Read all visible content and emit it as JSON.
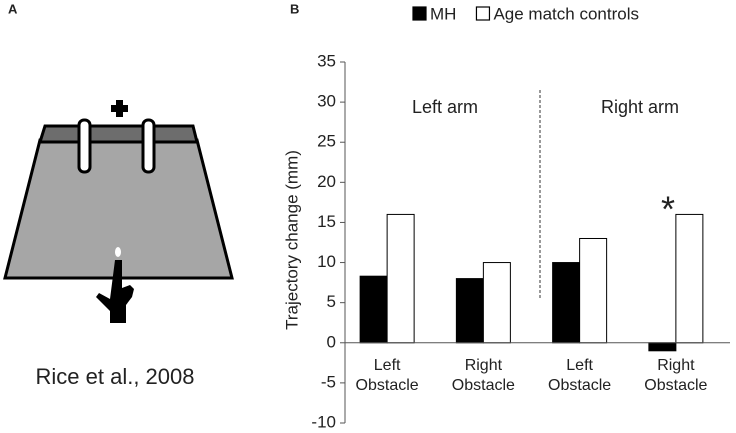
{
  "panel_a": {
    "label": "A",
    "caption": "Rice et al., 2008"
  },
  "chart_data": {
    "type": "bar",
    "panel_label": "B",
    "y_label": "Trajectory change (mm)",
    "categories": [
      "Left Obstacle",
      "Right Obstacle",
      "Left Obstacle",
      "Right Obstacle"
    ],
    "series": [
      {
        "name": "MH",
        "color": "#000000",
        "values": [
          8.3,
          8.0,
          10.0,
          -1.0
        ]
      },
      {
        "name": "Age match controls",
        "color": "#ffffff",
        "values": [
          16,
          10,
          13,
          16
        ]
      }
    ],
    "annotations": [
      "Left arm",
      "Right arm",
      "*"
    ],
    "ylim": [
      -10,
      35
    ],
    "yticks": [
      -10,
      -5,
      0,
      5,
      10,
      15,
      20,
      25,
      30,
      35
    ]
  }
}
